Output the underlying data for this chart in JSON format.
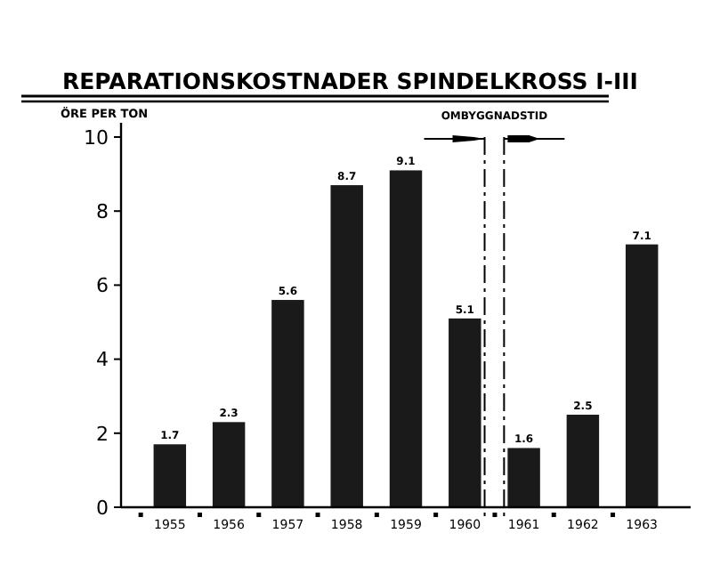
{
  "chart_data": {
    "type": "bar",
    "title": "REPARATIONSKOSTNADER SPINDELKROSS I-III",
    "ylabel": "ÖRE PER TON",
    "categories": [
      "1955",
      "1956",
      "1957",
      "1958",
      "1959",
      "1960",
      "1961",
      "1962",
      "1963"
    ],
    "values": [
      1.7,
      2.3,
      5.6,
      8.7,
      9.1,
      5.1,
      1.6,
      2.5,
      7.1
    ],
    "color": "#1a1a1a",
    "ylim": [
      0,
      10
    ],
    "yticks": [
      0,
      2,
      4,
      6,
      8,
      10
    ],
    "data_labels": true,
    "annotations": [
      "OMBYGGNADSTID"
    ],
    "ref_lines": [
      {
        "axis": "x",
        "value": "1960",
        "line_style": "dashed"
      },
      {
        "axis": "x",
        "value": "1961",
        "line_style": "dashed"
      }
    ]
  }
}
